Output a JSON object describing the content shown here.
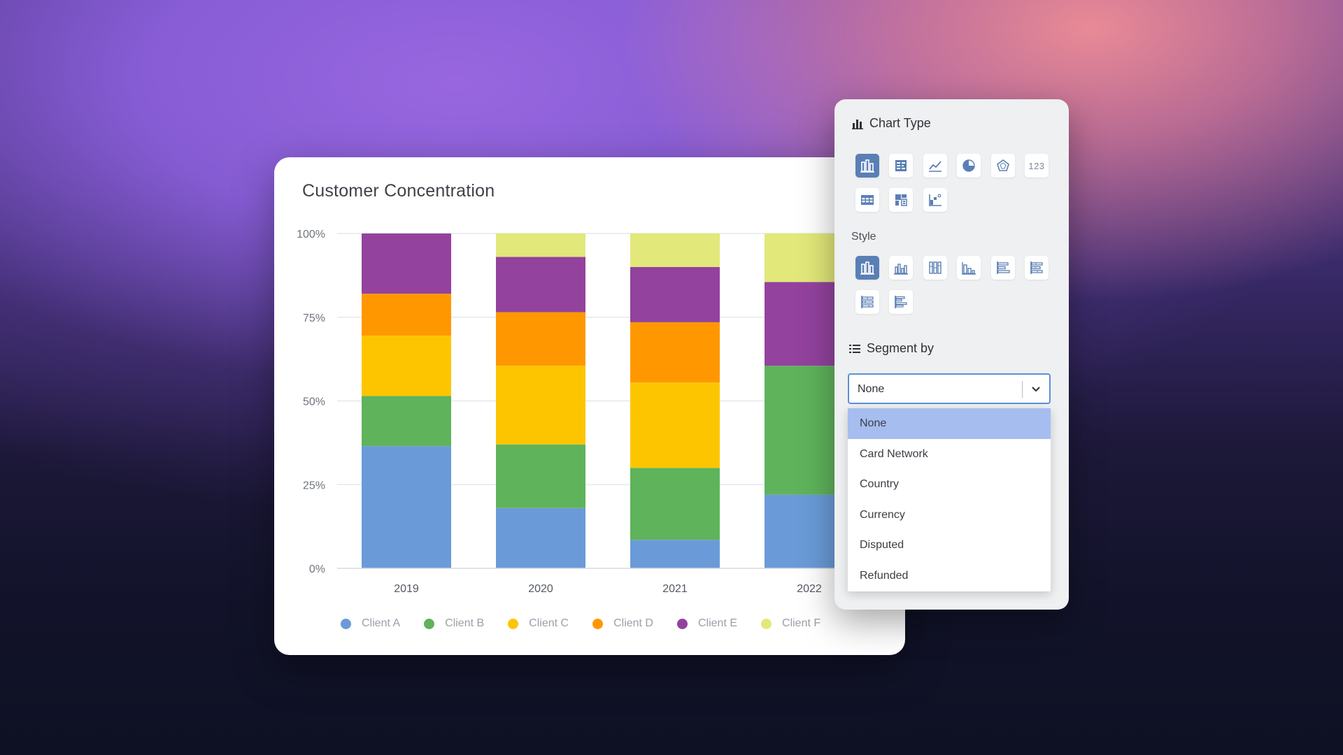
{
  "card": {
    "title": "Customer Concentration"
  },
  "chart_data": {
    "type": "bar",
    "stacked": true,
    "categories": [
      "2019",
      "2020",
      "2021",
      "2022"
    ],
    "ylim": [
      0,
      100
    ],
    "yticks": [
      "0%",
      "25%",
      "50%",
      "75%",
      "100%"
    ],
    "grid": true,
    "legend_position": "bottom",
    "series": [
      {
        "name": "Client A",
        "color": "#6a9bd8",
        "values": [
          36.5,
          18,
          8.5,
          22
        ]
      },
      {
        "name": "Client B",
        "color": "#5fb35b",
        "values": [
          15,
          19,
          21.5,
          38.5
        ]
      },
      {
        "name": "Client C",
        "color": "#fdc500",
        "values": [
          18,
          23.5,
          25.5,
          0
        ]
      },
      {
        "name": "Client D",
        "color": "#ff9800",
        "values": [
          12.5,
          16,
          18,
          0
        ]
      },
      {
        "name": "Client E",
        "color": "#93429e",
        "values": [
          18,
          16.5,
          16.5,
          25
        ]
      },
      {
        "name": "Client F",
        "color": "#e2e87a",
        "values": [
          0,
          7,
          10,
          14.5
        ]
      }
    ]
  },
  "panel": {
    "chart_type_title": "Chart Type",
    "chart_type_icons": [
      "stacked-bar-icon",
      "table-chart-icon",
      "line-chart-icon",
      "pie-chart-icon",
      "radar-chart-icon",
      "number-icon",
      "grid-table-icon",
      "pivot-table-icon",
      "waterfall-icon"
    ],
    "number_icon_text": "123",
    "style_title": "Style",
    "style_icons": [
      "stacked-column-icon",
      "grouped-column-icon",
      "percent-column-icon",
      "column-icon",
      "horizontal-bar-icon",
      "stacked-horizontal-bar-icon",
      "percent-horizontal-bar-icon",
      "grouped-horizontal-bar-icon"
    ],
    "segment_title": "Segment by",
    "segment_value": "None",
    "segment_options": [
      "None",
      "Card Network",
      "Country",
      "Currency",
      "Disputed",
      "Refunded"
    ],
    "accent_color": "#5a7fb5"
  }
}
